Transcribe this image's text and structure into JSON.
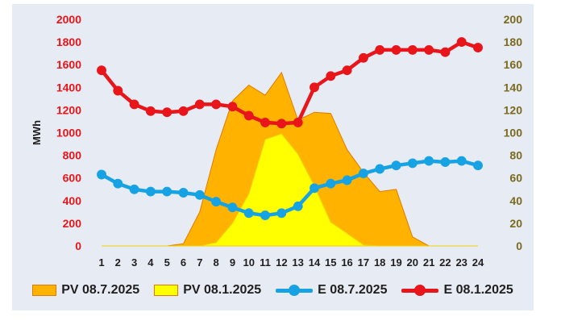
{
  "chart_data": {
    "type": "area",
    "x": [
      "1",
      "2",
      "3",
      "4",
      "5",
      "6",
      "7",
      "8",
      "9",
      "10",
      "11",
      "12",
      "13",
      "14",
      "15",
      "16",
      "17",
      "18",
      "19",
      "20",
      "21",
      "22",
      "23",
      "24"
    ],
    "ylabel": "MWh",
    "ylim": [
      0,
      2000
    ],
    "y_ticks": [
      "0",
      "200",
      "400",
      "600",
      "800",
      "1000",
      "1200",
      "1400",
      "1600",
      "1800",
      "2000"
    ],
    "y2lim": [
      0,
      200
    ],
    "y2_ticks": [
      "0",
      "20",
      "40",
      "60",
      "80",
      "100",
      "120",
      "140",
      "160",
      "180",
      "200"
    ],
    "grid": false,
    "legend_position": "bottom",
    "series": [
      {
        "name": "PV 08.7.2025",
        "kind": "area",
        "axis": "left",
        "color": "#ffb300",
        "values": [
          0,
          0,
          0,
          0,
          0,
          20,
          300,
          850,
          1280,
          1420,
          1330,
          1530,
          1110,
          1180,
          1170,
          850,
          650,
          480,
          500,
          80,
          0,
          0,
          0,
          0
        ]
      },
      {
        "name": "PV 08.1.2025",
        "kind": "area",
        "axis": "left",
        "color": "#ffff00",
        "values": [
          0,
          0,
          0,
          0,
          0,
          0,
          0,
          30,
          200,
          460,
          940,
          990,
          810,
          530,
          210,
          110,
          10,
          0,
          0,
          0,
          0,
          0,
          0,
          0
        ]
      },
      {
        "name": "E 08.7.2025",
        "kind": "line",
        "axis": "right",
        "color": "#17a3e3",
        "values": [
          63,
          55,
          50,
          48,
          48,
          47,
          45,
          39,
          34,
          29,
          27,
          29,
          35,
          51,
          55,
          58,
          64,
          68,
          71,
          73,
          75,
          74,
          75,
          71
        ]
      },
      {
        "name": "E 08.1.2025",
        "kind": "line",
        "axis": "right",
        "color": "#e8151b",
        "values": [
          155,
          137,
          125,
          119,
          118,
          119,
          125,
          125,
          123,
          115,
          109,
          108,
          109,
          140,
          150,
          155,
          166,
          173,
          173,
          173,
          173,
          171,
          180,
          175
        ]
      }
    ]
  }
}
